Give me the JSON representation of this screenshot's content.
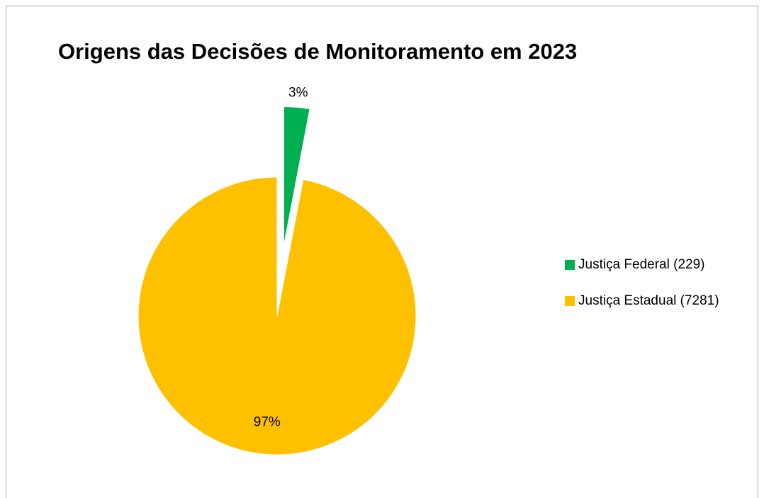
{
  "chart_data": {
    "type": "pie",
    "title": "Origens das Decisões de Monitoramento em 2023",
    "categories": [
      "Justiça Federal (229)",
      "Justiça Estadual (7281)"
    ],
    "values": [
      3,
      97
    ],
    "value_labels": [
      "3%",
      "97%"
    ],
    "colors": [
      "#00b050",
      "#ffc000"
    ],
    "legend": "right"
  }
}
